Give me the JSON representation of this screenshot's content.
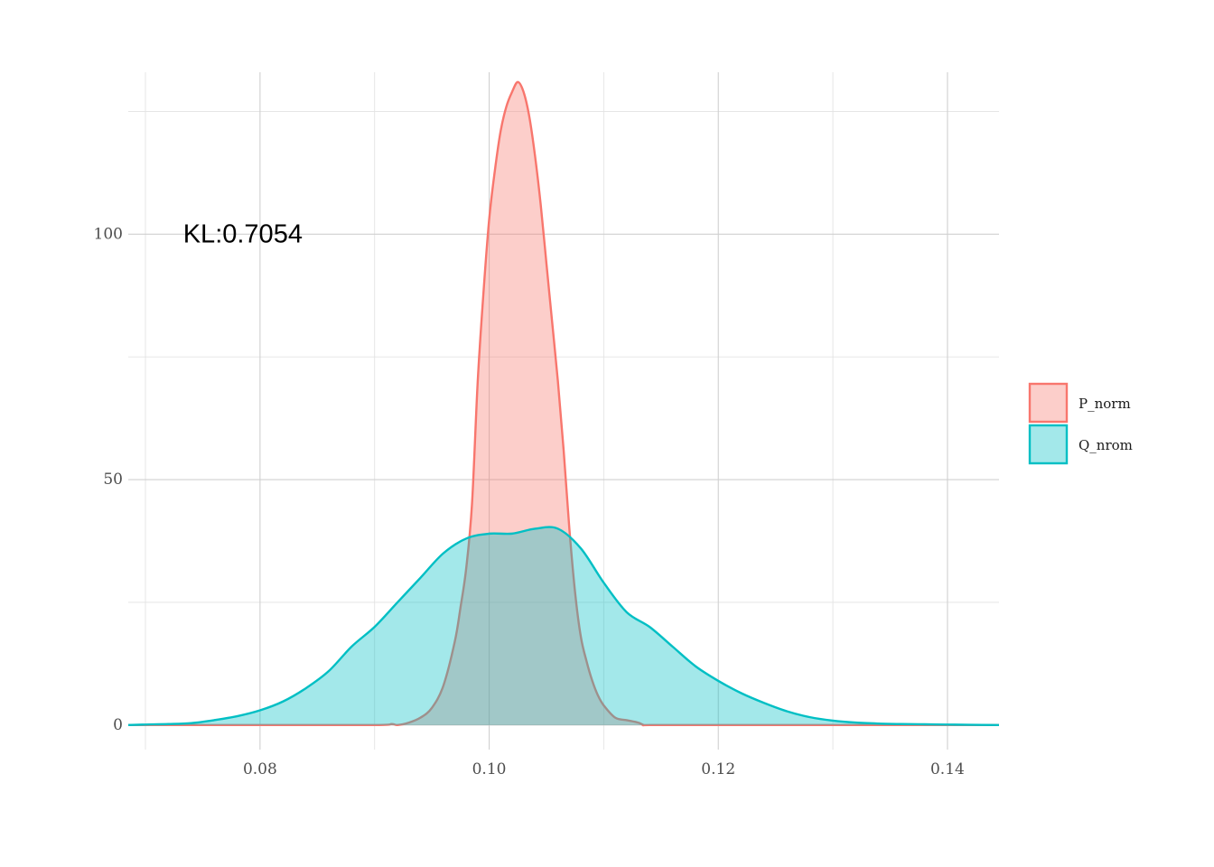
{
  "chart_data": {
    "type": "area",
    "title": "",
    "xlabel": "",
    "ylabel": "",
    "xlim": [
      0.0685,
      0.1445
    ],
    "ylim": [
      -5,
      133
    ],
    "x_ticks": [
      0.08,
      0.1,
      0.12,
      0.14
    ],
    "x_tick_labels": [
      "0.08",
      "0.10",
      "0.12",
      "0.14"
    ],
    "x_minor_ticks": [
      0.07,
      0.09,
      0.11,
      0.13
    ],
    "y_ticks": [
      0,
      50,
      100
    ],
    "y_tick_labels": [
      "0",
      "50",
      "100"
    ],
    "y_minor_ticks": [
      25,
      75,
      125
    ],
    "grid": true,
    "legend": {
      "position": "right"
    },
    "annotation": {
      "text": "KL:0.7054",
      "x": 0.0785,
      "y": 100
    },
    "series": [
      {
        "name": "P_norm",
        "color": "#F8766D",
        "x": [
          0.0685,
          0.08,
          0.09,
          0.0915,
          0.092,
          0.093,
          0.094,
          0.095,
          0.096,
          0.097,
          0.0975,
          0.098,
          0.0985,
          0.099,
          0.0995,
          0.1,
          0.1005,
          0.101,
          0.1015,
          0.102,
          0.1025,
          0.103,
          0.1035,
          0.104,
          0.1045,
          0.105,
          0.1055,
          0.106,
          0.1065,
          0.107,
          0.1075,
          0.108,
          0.1085,
          0.109,
          0.1095,
          0.11,
          0.111,
          0.112,
          0.113,
          0.1135,
          0.114,
          0.12,
          0.1445
        ],
        "y": [
          0,
          0,
          0,
          0.2,
          0,
          0.5,
          1.5,
          3.5,
          8,
          17,
          24,
          32,
          45,
          70,
          88,
          103,
          113,
          121,
          126,
          129,
          131,
          129,
          124,
          116,
          106,
          94,
          82,
          70,
          56,
          40,
          27,
          18,
          13,
          9,
          6,
          4,
          1.5,
          1,
          0.5,
          0,
          0,
          0,
          0
        ]
      },
      {
        "name": "Q_nrom",
        "color": "#00BFC4",
        "x": [
          0.0685,
          0.07,
          0.072,
          0.074,
          0.076,
          0.078,
          0.08,
          0.082,
          0.084,
          0.086,
          0.088,
          0.09,
          0.092,
          0.094,
          0.096,
          0.098,
          0.1,
          0.102,
          0.104,
          0.106,
          0.108,
          0.11,
          0.112,
          0.114,
          0.116,
          0.118,
          0.12,
          0.122,
          0.124,
          0.126,
          0.128,
          0.13,
          0.132,
          0.134,
          0.136,
          0.138,
          0.14,
          0.142,
          0.1445
        ],
        "y": [
          0,
          0.1,
          0.2,
          0.4,
          1.0,
          1.8,
          3,
          4.8,
          7.5,
          11,
          16,
          20,
          25,
          30,
          35,
          38,
          39,
          39,
          40,
          40,
          36,
          29,
          23,
          20,
          16,
          12,
          9,
          6.5,
          4.5,
          2.8,
          1.6,
          0.9,
          0.5,
          0.3,
          0.2,
          0.15,
          0.1,
          0.05,
          0
        ]
      }
    ]
  }
}
